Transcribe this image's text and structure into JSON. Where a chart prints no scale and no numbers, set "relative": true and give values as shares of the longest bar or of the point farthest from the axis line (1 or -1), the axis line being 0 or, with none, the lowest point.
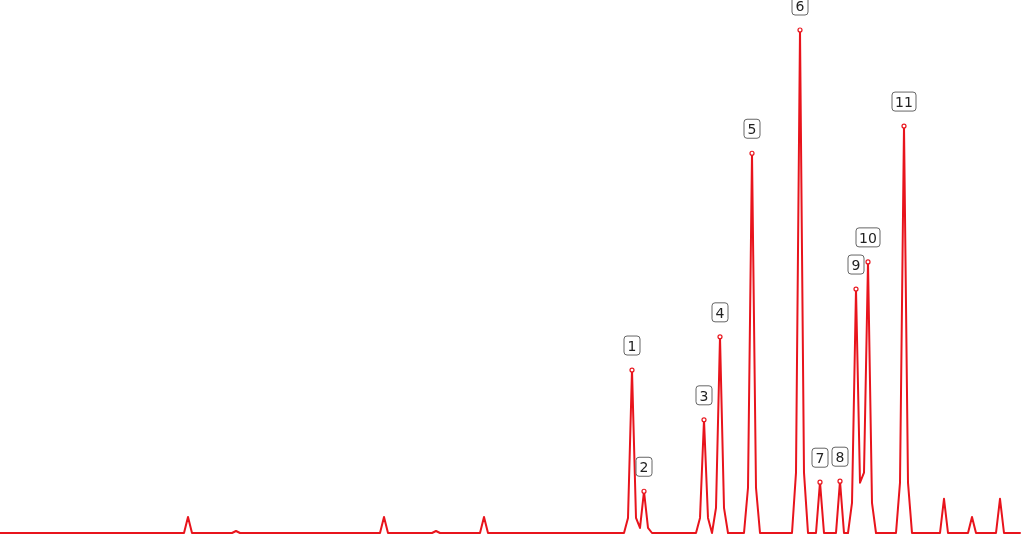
{
  "chart_data": {
    "type": "line",
    "relative": true,
    "categories": [
      null,
      null,
      null,
      null,
      null,
      null,
      null,
      null,
      null,
      null,
      null,
      null,
      null,
      null,
      null,
      null,
      null,
      null,
      null,
      null,
      null,
      null,
      null,
      null,
      null,
      null,
      null,
      null,
      null,
      null,
      null,
      null,
      null,
      null,
      null,
      null,
      null,
      null,
      null,
      null,
      null,
      null,
      null,
      null,
      null,
      null,
      null,
      null,
      null,
      null,
      null,
      null,
      null,
      null,
      null,
      null,
      null,
      null,
      null,
      null,
      null,
      null,
      null,
      null,
      null,
      null,
      null,
      null,
      null,
      null,
      null,
      null,
      null,
      null,
      null,
      null,
      null,
      null,
      null,
      null,
      null,
      null,
      null,
      null,
      null,
      null,
      null,
      null,
      null,
      null,
      null,
      null,
      null,
      null,
      null,
      null,
      null,
      null,
      null,
      null,
      null,
      null,
      null,
      null,
      null,
      null,
      null,
      null,
      null,
      null,
      null,
      null,
      null,
      null,
      null,
      null,
      null,
      null,
      null,
      null,
      null,
      null,
      null,
      null,
      null,
      null,
      null,
      null,
      null,
      null,
      null,
      null,
      null,
      null,
      null,
      null,
      null,
      null,
      null,
      null,
      null,
      null,
      null,
      null,
      null,
      null,
      null,
      null,
      null,
      null,
      null,
      null,
      null,
      null,
      null,
      null,
      null,
      null,
      null,
      null,
      null,
      null,
      null,
      null,
      null,
      null,
      null,
      null,
      null,
      null,
      null,
      null,
      null,
      null,
      null,
      null,
      null,
      null,
      null,
      null,
      null,
      null,
      null,
      null,
      null,
      null,
      null,
      null,
      null,
      null,
      null,
      null,
      null,
      null,
      null,
      null,
      null,
      null,
      null,
      null,
      null,
      null,
      null,
      null,
      null,
      null,
      null,
      null,
      null,
      null,
      null,
      null,
      null,
      null,
      null,
      null,
      null,
      null,
      null,
      null,
      null,
      null,
      null,
      null,
      null,
      null,
      null,
      null,
      null,
      null,
      null,
      null,
      null,
      null,
      null,
      null,
      null,
      null,
      null,
      null,
      null,
      null,
      null,
      null,
      null,
      null,
      null,
      null,
      null,
      null,
      null,
      null,
      null,
      null,
      null,
      null
    ],
    "series": [
      {
        "color": "#e8141c",
        "values": [
          0,
          0,
          0,
          0,
          0,
          0,
          0,
          0,
          0,
          0,
          0,
          0,
          0,
          0,
          0,
          0,
          0,
          0,
          0,
          0,
          0,
          0,
          0,
          0,
          0,
          0,
          0,
          0,
          0,
          0,
          0,
          0,
          0,
          0,
          0,
          0,
          0,
          0,
          0,
          0,
          0,
          0,
          0,
          0,
          0,
          0,
          0,
          0.032,
          0,
          0,
          0,
          0,
          0,
          0,
          0,
          0,
          0,
          0,
          0,
          0.004,
          0,
          0,
          0,
          0,
          0,
          0,
          0,
          0,
          0,
          0,
          0,
          0,
          0,
          0,
          0,
          0,
          0,
          0,
          0,
          0,
          0,
          0,
          0,
          0,
          0,
          0,
          0,
          0,
          0,
          0,
          0,
          0,
          0,
          0,
          0,
          0,
          0.032,
          0,
          0,
          0,
          0,
          0,
          0,
          0,
          0,
          0,
          0,
          0,
          0,
          0.004,
          0,
          0,
          0,
          0,
          0,
          0,
          0,
          0,
          0,
          0,
          0,
          0.032,
          0,
          0,
          0,
          0,
          0,
          0,
          0,
          0,
          0,
          0,
          0,
          0,
          0,
          0,
          0,
          0,
          0,
          0,
          0,
          0,
          0,
          0,
          0,
          0,
          0,
          0,
          0,
          0,
          0,
          0,
          0,
          0,
          0,
          0,
          0,
          0.03,
          0.324,
          0.03,
          0.01,
          0.083,
          0.01,
          0,
          0,
          0,
          0,
          0,
          0,
          0,
          0,
          0,
          0,
          0,
          0,
          0.03,
          0.225,
          0.03,
          0,
          0.05,
          0.39,
          0.05,
          0,
          0,
          0,
          0,
          0,
          0.09,
          0.755,
          0.09,
          0,
          0,
          0,
          0,
          0,
          0,
          0,
          0,
          0,
          0.12,
          1,
          0.12,
          0,
          0,
          0,
          0.101,
          0,
          0,
          0,
          0,
          0.103,
          0,
          0,
          0.06,
          0.485,
          0.1,
          0.12,
          0.539,
          0.06,
          0,
          0,
          0,
          0,
          0,
          0,
          0.1,
          0.809,
          0.1,
          0,
          0,
          0,
          0,
          0,
          0,
          0,
          0,
          0.068,
          0,
          0,
          0,
          0,
          0,
          0,
          0.032,
          0,
          0,
          0,
          0,
          0,
          0,
          0.068,
          0,
          0,
          0,
          0,
          0
        ]
      }
    ],
    "annotations": [
      {
        "text": "1",
        "y": 0.324
      },
      {
        "text": "2",
        "y": 0.083
      },
      {
        "text": "3",
        "y": 0.225
      },
      {
        "text": "4",
        "y": 0.39
      },
      {
        "text": "5",
        "y": 0.755
      },
      {
        "text": "6",
        "y": 1
      },
      {
        "text": "7",
        "y": 0.101
      },
      {
        "text": "8",
        "y": 0.103
      },
      {
        "text": "9",
        "y": 0.485
      },
      {
        "text": "10",
        "y": 0.539
      },
      {
        "text": "11",
        "y": 0.809
      }
    ]
  }
}
